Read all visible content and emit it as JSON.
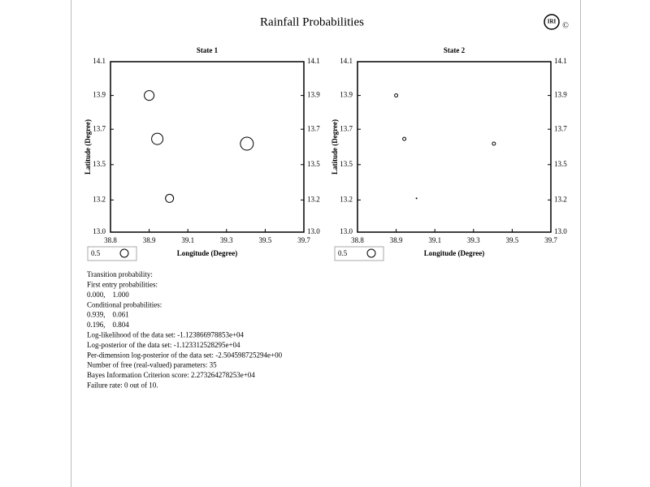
{
  "header": {
    "title": "Rainfall Probabilities",
    "logo": "IRI",
    "copyright": "©"
  },
  "chart_data": [
    {
      "type": "scatter",
      "title": "State 1",
      "x_label": "Longitude (Degree)",
      "y_label": "Latitude (Degree)",
      "xlim": [
        38.75,
        39.7
      ],
      "xticks": [
        {
          "value": 38.75,
          "label": "38.8"
        },
        {
          "value": 38.94,
          "label": "38.9"
        },
        {
          "value": 39.13,
          "label": "39.1"
        },
        {
          "value": 39.32,
          "label": "39.3"
        },
        {
          "value": 39.51,
          "label": "39.5"
        },
        39.7
      ],
      "ylim": [
        13.04,
        14.1
      ],
      "yticks": [
        {
          "value": 13.04,
          "label": "13.0"
        },
        {
          "value": 13.24,
          "label": "13.2"
        },
        {
          "value": 13.46,
          "label": "13.5"
        },
        {
          "value": 13.68,
          "label": "13.7"
        },
        {
          "value": 13.89,
          "label": "13.9"
        },
        14.1
      ],
      "series": [
        {
          "color": "#000000",
          "x": [
            38.94,
            38.98,
            39.42,
            39.04
          ],
          "values": [
            13.89,
            13.62,
            13.59,
            13.25
          ],
          "sizes": [
            0.6,
            0.7,
            0.8,
            0.5
          ]
        }
      ],
      "size_legend": 0.5
    },
    {
      "type": "scatter",
      "title": "State 2",
      "x_label": "Longitude (Degree)",
      "y_label": "Latitude (Degree)",
      "xlim": [
        38.75,
        39.7
      ],
      "xticks": [
        {
          "value": 38.75,
          "label": "38.8"
        },
        {
          "value": 38.94,
          "label": "38.9"
        },
        {
          "value": 39.13,
          "label": "39.1"
        },
        {
          "value": 39.32,
          "label": "39.3"
        },
        {
          "value": 39.51,
          "label": "39.5"
        },
        39.7
      ],
      "ylim": [
        13.04,
        14.1
      ],
      "yticks": [
        {
          "value": 13.04,
          "label": "13.0"
        },
        {
          "value": 13.24,
          "label": "13.2"
        },
        {
          "value": 13.46,
          "label": "13.5"
        },
        {
          "value": 13.68,
          "label": "13.7"
        },
        {
          "value": 13.89,
          "label": "13.9"
        },
        14.1
      ],
      "series": [
        {
          "color": "#000000",
          "x": [
            38.94,
            38.98,
            39.42,
            39.04
          ],
          "values": [
            13.89,
            13.62,
            13.59,
            13.25
          ],
          "sizes": [
            0.2,
            0.2,
            0.2,
            0.05
          ]
        }
      ],
      "size_legend": 0.5
    }
  ],
  "report": {
    "lines": [
      "Transition probability:",
      "First entry probabilities:",
      "0.000,    1.000",
      "Conditional probabilities:",
      "0.939,    0.061",
      "0.196,    0.804",
      "Log-likelihood of the data set: -1.123866978853e+04",
      "Log-posterior of the data set: -1.123312528295e+04",
      "Per-dimension log-posterior of the data set: -2.504598725294e+00",
      "Number of free (real-valued) parameters: 35",
      "Bayes Information Criterion score: 2.273264278253e+04",
      "Failure rate: 0 out of 10."
    ]
  }
}
